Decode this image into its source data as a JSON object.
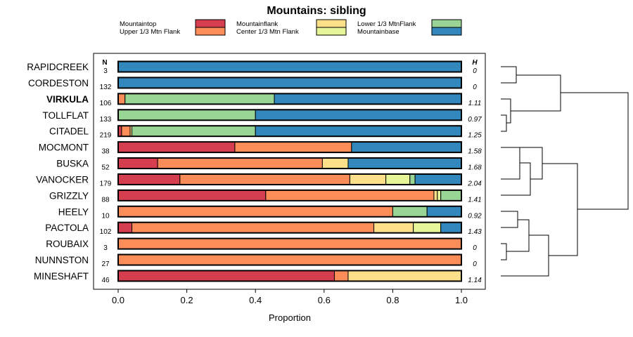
{
  "chart_data": {
    "type": "bar",
    "subtype": "stacked-horizontal-proportion",
    "title": "Mountains: sibling",
    "xlabel": "Proportion",
    "ylabel": "",
    "xlim": [
      0,
      1
    ],
    "x_ticks": [
      "0.0",
      "0.2",
      "0.4",
      "0.6",
      "0.8",
      "1.0"
    ],
    "x_tick_values": [
      0,
      0.2,
      0.4,
      0.6,
      0.8,
      1.0
    ],
    "n_header": "N",
    "h_header": "H",
    "legend_position": "top",
    "legend": [
      {
        "name": "Mountaintop",
        "color": "#d53e4f"
      },
      {
        "name": "Upper 1/3 Mtn Flank",
        "color": "#fc8d59"
      },
      {
        "name": "Mountainflank",
        "color": "#fee08b"
      },
      {
        "name": "Center 1/3 Mtn Flank",
        "color": "#e6f598"
      },
      {
        "name": "Lower 1/3 MtnFlank",
        "color": "#99d594"
      },
      {
        "name": "Mountainbase",
        "color": "#3288bd"
      }
    ],
    "categories": [
      "RAPIDCREEK",
      "CORDESTON",
      "VIRKULA",
      "TOLLFLAT",
      "CITADEL",
      "MOCMONT",
      "BUSKA",
      "VANOCKER",
      "GRIZZLY",
      "HEELY",
      "PACTOLA",
      "ROUBAIX",
      "NUNNSTON",
      "MINESHAFT"
    ],
    "bold_categories": [
      "VIRKULA"
    ],
    "n": [
      "3",
      "132",
      "106",
      "133",
      "219",
      "38",
      "52",
      "179",
      "88",
      "10",
      "102",
      "3",
      "27",
      "46"
    ],
    "h": [
      "0",
      "0",
      "1.11",
      "0.97",
      "1.25",
      "1.58",
      "1.68",
      "2.04",
      "1.41",
      "0.92",
      "1.43",
      "0",
      "0",
      "1.14"
    ],
    "series": [
      {
        "name": "Mountaintop",
        "values": [
          0,
          0,
          0,
          0,
          0.01,
          0.34,
          0.115,
          0.18,
          0.43,
          0,
          0.04,
          0,
          0,
          0.63
        ]
      },
      {
        "name": "Upper 1/3 Mtn Flank",
        "values": [
          0,
          0,
          0.02,
          0,
          0.025,
          0.34,
          0.48,
          0.495,
          0.49,
          0.8,
          0.705,
          1.0,
          1.0,
          0.04
        ]
      },
      {
        "name": "Mountainflank",
        "values": [
          0,
          0,
          0,
          0,
          0.005,
          0,
          0.075,
          0.105,
          0.01,
          0,
          0.115,
          0,
          0,
          0.33
        ]
      },
      {
        "name": "Center 1/3 Mtn Flank",
        "values": [
          0,
          0,
          0,
          0,
          0,
          0,
          0,
          0.07,
          0.01,
          0,
          0.08,
          0,
          0,
          0
        ]
      },
      {
        "name": "Lower 1/3 MtnFlank",
        "values": [
          0,
          0,
          0.435,
          0.4,
          0.36,
          0,
          0,
          0.015,
          0.06,
          0.1,
          0,
          0,
          0,
          0
        ]
      },
      {
        "name": "Mountainbase",
        "values": [
          1.0,
          1.0,
          0.545,
          0.6,
          0.6,
          0.32,
          0.33,
          0.135,
          0,
          0.1,
          0.06,
          0,
          0,
          0
        ]
      }
    ],
    "dendrogram": {
      "description": "hierarchical clustering of sites shown to the right of bars",
      "tree": [
        [
          [
            [
              "RAPIDCREEK",
              "CORDESTON"
            ],
            [
              [
                "VIRKULA",
                [
                  "TOLLFLAT",
                  "CITADEL"
                ]
              ]
            ]
          ]
        ],
        [
          [
            [
              [
                "MOCMONT",
                [
                  "BUSKA",
                  "VANOCKER"
                ]
              ]
            ],
            "GRIZZLY"
          ],
          [
            [
              [
                "HEELY",
                "PACTOLA"
              ],
              [
                "ROUBAIX",
                "NUNNSTON"
              ]
            ],
            "MINESHAFT"
          ]
        ]
      ]
    }
  }
}
